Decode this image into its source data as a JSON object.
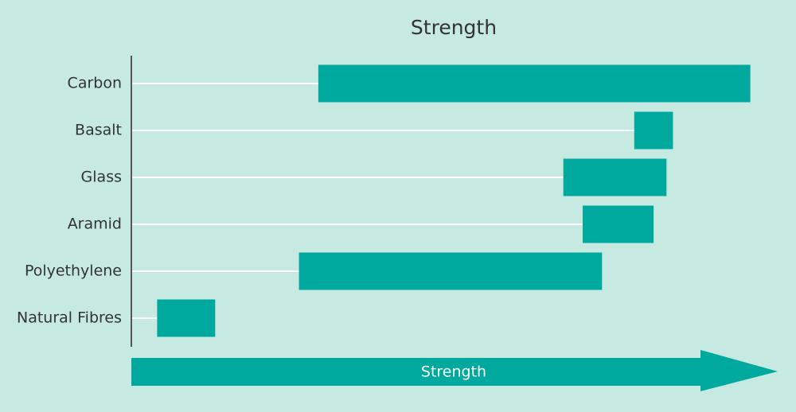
{
  "chart_data": {
    "type": "floating-bar",
    "title": "Strength",
    "x_label": "Strength",
    "categories": [
      "Carbon",
      "Basalt",
      "Glass",
      "Aramid",
      "Polyethylene",
      "Natural Fibres"
    ],
    "starts": [
      29,
      78,
      67,
      70,
      26,
      4
    ],
    "ends": [
      96,
      84,
      83,
      81,
      73,
      13
    ],
    "color": "#00a99d",
    "xlim": [
      0,
      100
    ]
  }
}
